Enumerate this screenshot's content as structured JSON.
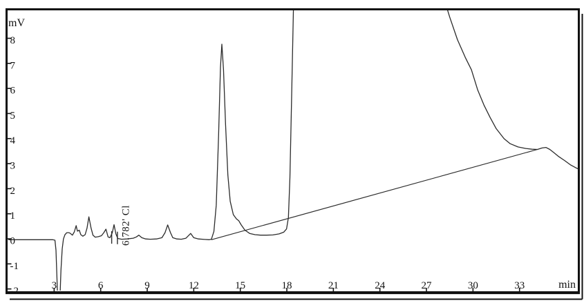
{
  "chart_data": {
    "type": "line",
    "title": "",
    "xlabel": "min",
    "ylabel": "mV",
    "xlim": [
      0,
      36.8
    ],
    "ylim": [
      -2.01,
      9.17
    ],
    "x_ticks": [
      3,
      6,
      9,
      12,
      15,
      18,
      21,
      24,
      27,
      30,
      33
    ],
    "y_ticks": [
      8,
      7,
      6,
      5,
      4,
      3,
      2,
      1,
      0,
      -1,
      -2
    ],
    "grid": false,
    "legend": "none",
    "frame_color": "#111111",
    "trace_color": "#2b2b2b",
    "annotation": {
      "text": "6.782' Cl",
      "retention_time_min": 6.782,
      "compound": "Cl",
      "t": 7.82,
      "v": -0.22,
      "rotation_deg": -90,
      "color": "#2e3a52"
    },
    "peaks_of_interest": [
      {
        "retention_time_min": 6.782,
        "label": "Cl",
        "height_mV": 0.62
      },
      {
        "retention_time_min": 13.8,
        "label": "",
        "height_mV": 7.8
      },
      {
        "retention_time_min": 18.5,
        "label": "",
        "height_mV": "off-scale (clipped at top)"
      }
    ],
    "series": [
      {
        "name": "signal",
        "points": [
          [
            0.05,
            0.02
          ],
          [
            1.5,
            0.02
          ],
          [
            2.9,
            0.02
          ],
          [
            3.05,
            0.0
          ],
          [
            3.12,
            -0.4
          ],
          [
            3.18,
            -1.5
          ],
          [
            3.24,
            -2.6
          ],
          [
            3.36,
            -2.6
          ],
          [
            3.44,
            -1.2
          ],
          [
            3.52,
            -0.35
          ],
          [
            3.6,
            0.05
          ],
          [
            3.7,
            0.22
          ],
          [
            3.82,
            0.3
          ],
          [
            3.95,
            0.3
          ],
          [
            4.05,
            0.27
          ],
          [
            4.18,
            0.2
          ],
          [
            4.3,
            0.33
          ],
          [
            4.42,
            0.58
          ],
          [
            4.5,
            0.36
          ],
          [
            4.62,
            0.4
          ],
          [
            4.72,
            0.22
          ],
          [
            4.85,
            0.16
          ],
          [
            5.0,
            0.22
          ],
          [
            5.12,
            0.48
          ],
          [
            5.24,
            0.93
          ],
          [
            5.38,
            0.48
          ],
          [
            5.5,
            0.2
          ],
          [
            5.65,
            0.12
          ],
          [
            5.85,
            0.14
          ],
          [
            6.05,
            0.18
          ],
          [
            6.2,
            0.3
          ],
          [
            6.34,
            0.44
          ],
          [
            6.48,
            0.13
          ],
          [
            6.6,
            0.1
          ],
          [
            6.75,
            0.3
          ],
          [
            6.86,
            0.62
          ],
          [
            6.98,
            0.25
          ],
          [
            7.1,
            0.07
          ],
          [
            7.35,
            0.04
          ],
          [
            7.7,
            0.05
          ],
          [
            8.1,
            0.08
          ],
          [
            8.3,
            0.13
          ],
          [
            8.46,
            0.2
          ],
          [
            8.65,
            0.1
          ],
          [
            8.9,
            0.05
          ],
          [
            9.2,
            0.04
          ],
          [
            9.6,
            0.05
          ],
          [
            9.95,
            0.1
          ],
          [
            10.15,
            0.3
          ],
          [
            10.32,
            0.61
          ],
          [
            10.5,
            0.3
          ],
          [
            10.65,
            0.1
          ],
          [
            10.9,
            0.05
          ],
          [
            11.2,
            0.04
          ],
          [
            11.5,
            0.08
          ],
          [
            11.8,
            0.27
          ],
          [
            12.0,
            0.1
          ],
          [
            12.3,
            0.05
          ],
          [
            12.7,
            0.03
          ],
          [
            13.0,
            0.02
          ],
          [
            13.14,
            0.04
          ],
          [
            13.3,
            0.35
          ],
          [
            13.45,
            1.4
          ],
          [
            13.6,
            4.2
          ],
          [
            13.72,
            6.9
          ],
          [
            13.81,
            7.82
          ],
          [
            13.92,
            6.8
          ],
          [
            14.05,
            4.6
          ],
          [
            14.2,
            2.6
          ],
          [
            14.35,
            1.55
          ],
          [
            14.55,
            1.02
          ],
          [
            14.75,
            0.85
          ],
          [
            14.9,
            0.78
          ],
          [
            15.05,
            0.62
          ],
          [
            15.3,
            0.4
          ],
          [
            15.6,
            0.27
          ],
          [
            15.95,
            0.22
          ],
          [
            16.3,
            0.2
          ],
          [
            16.7,
            0.2
          ],
          [
            17.1,
            0.21
          ],
          [
            17.5,
            0.25
          ],
          [
            17.8,
            0.32
          ],
          [
            17.98,
            0.45
          ],
          [
            18.1,
            0.9
          ],
          [
            18.2,
            2.5
          ],
          [
            18.3,
            5.5
          ],
          [
            18.42,
            9.0
          ],
          [
            18.52,
            12.0
          ],
          [
            28.0,
            12.0
          ],
          [
            28.25,
            9.4
          ],
          [
            28.5,
            8.9
          ],
          [
            29.0,
            8.0
          ],
          [
            29.5,
            7.3
          ],
          [
            29.9,
            6.8
          ],
          [
            30.3,
            6.0
          ],
          [
            30.7,
            5.4
          ],
          [
            31.1,
            4.9
          ],
          [
            31.5,
            4.45
          ],
          [
            32.0,
            4.05
          ],
          [
            32.4,
            3.85
          ],
          [
            32.9,
            3.72
          ],
          [
            33.4,
            3.66
          ],
          [
            33.8,
            3.63
          ],
          [
            34.16,
            3.62
          ],
          [
            34.45,
            3.68
          ],
          [
            34.7,
            3.7
          ],
          [
            34.95,
            3.62
          ],
          [
            35.2,
            3.5
          ],
          [
            35.5,
            3.35
          ],
          [
            35.9,
            3.18
          ],
          [
            36.3,
            3.0
          ],
          [
            36.6,
            2.9
          ],
          [
            36.85,
            2.82
          ]
        ]
      },
      {
        "name": "integration-baseline",
        "points": [
          [
            13.14,
            0.02
          ],
          [
            34.16,
            3.62
          ]
        ]
      },
      {
        "name": "peak-start-marker",
        "points": [
          [
            6.71,
            -0.14
          ],
          [
            6.71,
            0.36
          ]
        ]
      },
      {
        "name": "peak-end-marker",
        "points": [
          [
            7.08,
            -0.16
          ],
          [
            7.08,
            0.34
          ]
        ]
      }
    ]
  }
}
